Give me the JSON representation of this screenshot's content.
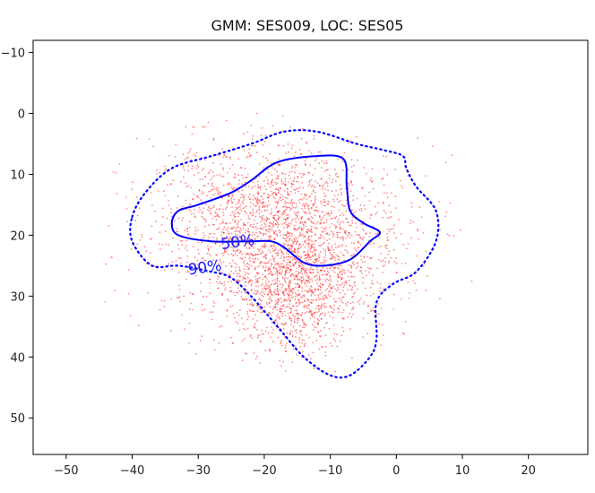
{
  "chart_data": {
    "type": "scatter",
    "title": "GMM: SES009, LOC: SES05",
    "xlabel": "",
    "ylabel": "",
    "xlim": [
      -55,
      29
    ],
    "ylim": [
      56,
      -12
    ],
    "y_axis_inverted": true,
    "x_ticks": [
      -50,
      -40,
      -30,
      -20,
      -10,
      0,
      10,
      20
    ],
    "x_tick_labels": [
      "−50",
      "−40",
      "−30",
      "−20",
      "−10",
      "0",
      "10",
      "20"
    ],
    "y_ticks": [
      -10,
      0,
      10,
      20,
      30,
      40,
      50
    ],
    "y_tick_labels": [
      "−10",
      "0",
      "10",
      "20",
      "30",
      "40",
      "50"
    ],
    "grid": false,
    "legend": "none",
    "series": [
      {
        "kind": "scatter",
        "color": "#ff0000",
        "description_points": "dense cloud of small red points",
        "cluster_center": [
          -17,
          22
        ],
        "spread": [
          9,
          7
        ],
        "approx_extent_x": [
          -45,
          16
        ],
        "approx_extent_y": [
          -1,
          43
        ]
      },
      {
        "kind": "contour",
        "label": "50%",
        "color": "#0000ff",
        "linestyle": "solid",
        "points": [
          [
            -33,
            16
          ],
          [
            -30,
            15
          ],
          [
            -25,
            13
          ],
          [
            -22,
            11
          ],
          [
            -18,
            8
          ],
          [
            -12,
            7
          ],
          [
            -8,
            7.5
          ],
          [
            -7.5,
            12
          ],
          [
            -7,
            16
          ],
          [
            -5,
            18
          ],
          [
            -2.5,
            19.5
          ],
          [
            -4,
            21
          ],
          [
            -7,
            24
          ],
          [
            -11,
            25
          ],
          [
            -14,
            24.5
          ],
          [
            -17,
            22
          ],
          [
            -19,
            21
          ],
          [
            -22,
            21
          ],
          [
            -28,
            21
          ],
          [
            -33,
            20
          ],
          [
            -34,
            18
          ],
          [
            -33,
            16
          ]
        ]
      },
      {
        "kind": "contour",
        "label": "90%",
        "color": "#0000ff",
        "linestyle": "dotted",
        "points": [
          [
            -40,
            17
          ],
          [
            -38,
            13
          ],
          [
            -34,
            9
          ],
          [
            -28,
            7
          ],
          [
            -22,
            5
          ],
          [
            -17,
            3
          ],
          [
            -12,
            3
          ],
          [
            -6,
            5
          ],
          [
            -2,
            6
          ],
          [
            1,
            7
          ],
          [
            1.5,
            9
          ],
          [
            3,
            12
          ],
          [
            6,
            16
          ],
          [
            6,
            21
          ],
          [
            3,
            26
          ],
          [
            -0.5,
            28
          ],
          [
            -3,
            31
          ],
          [
            -3,
            37
          ],
          [
            -4,
            40
          ],
          [
            -7,
            43
          ],
          [
            -10,
            43
          ],
          [
            -14,
            40
          ],
          [
            -18,
            35
          ],
          [
            -22,
            30
          ],
          [
            -25,
            27
          ],
          [
            -28,
            26
          ],
          [
            -33,
            25
          ],
          [
            -37,
            25
          ],
          [
            -40,
            21
          ],
          [
            -40,
            17
          ]
        ]
      }
    ],
    "contour_labels": [
      {
        "text": "50%",
        "x": -24,
        "y": 21.2
      },
      {
        "text": "90%",
        "x": -29,
        "y": 25.4
      }
    ]
  },
  "colors": {
    "points": "#ff0000",
    "contour": "#0000ff",
    "axes": "#000000",
    "background": "#ffffff"
  }
}
